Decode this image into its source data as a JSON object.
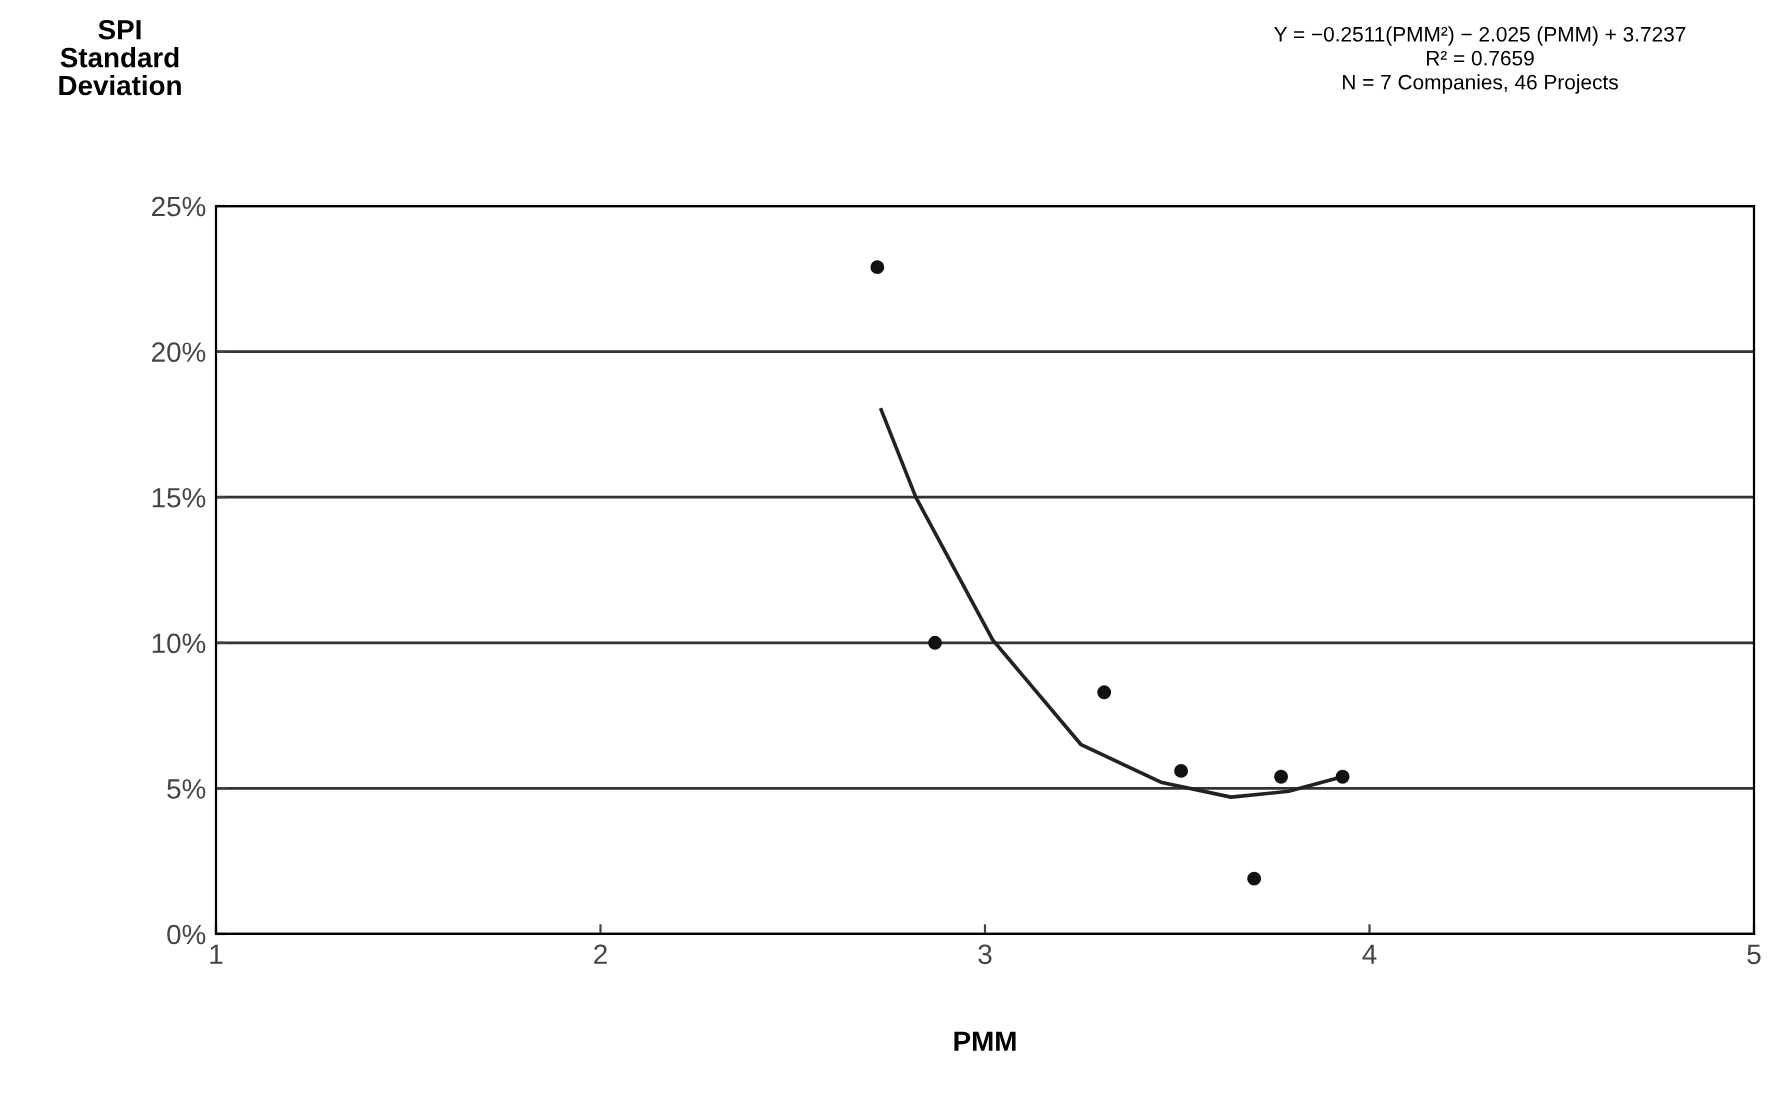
{
  "chart_data": {
    "type": "scatter",
    "ylabel": "SPI\nStandard\nDeviation",
    "xlabel": "PMM",
    "annotations": [
      "Y = −0.2511(PMM²) − 2.025 (PMM) + 3.7237\nR² = 0.7659\nN = 7 Companies, 46 Projects"
    ],
    "xlim": [
      1,
      5
    ],
    "xticks": [
      1,
      2,
      3,
      4,
      5
    ],
    "ylim": [
      0,
      25
    ],
    "yticks": [
      {
        "value": 0,
        "label": "0%"
      },
      {
        "value": 5,
        "label": "5%"
      },
      {
        "value": 10,
        "label": "10%"
      },
      {
        "value": 15,
        "label": "15%"
      },
      {
        "value": 20,
        "label": "20%"
      },
      {
        "value": 25,
        "label": "25%"
      }
    ],
    "grid": "y",
    "legend": false,
    "series": [
      {
        "marker": "circle",
        "color": "#111111",
        "x": [
          2.72,
          2.87,
          3.31,
          3.51,
          3.7,
          3.77,
          3.93
        ],
        "values": [
          22.9,
          10.0,
          8.3,
          5.6,
          1.9,
          5.4,
          5.4
        ]
      },
      {
        "type": "line",
        "marker": "none",
        "color": "#222222",
        "x": [
          2.73,
          2.82,
          3.02,
          3.25,
          3.46,
          3.64,
          3.79,
          3.93
        ],
        "values": [
          18.0,
          15.0,
          10.1,
          6.5,
          5.2,
          4.7,
          4.9,
          5.4
        ]
      }
    ]
  }
}
